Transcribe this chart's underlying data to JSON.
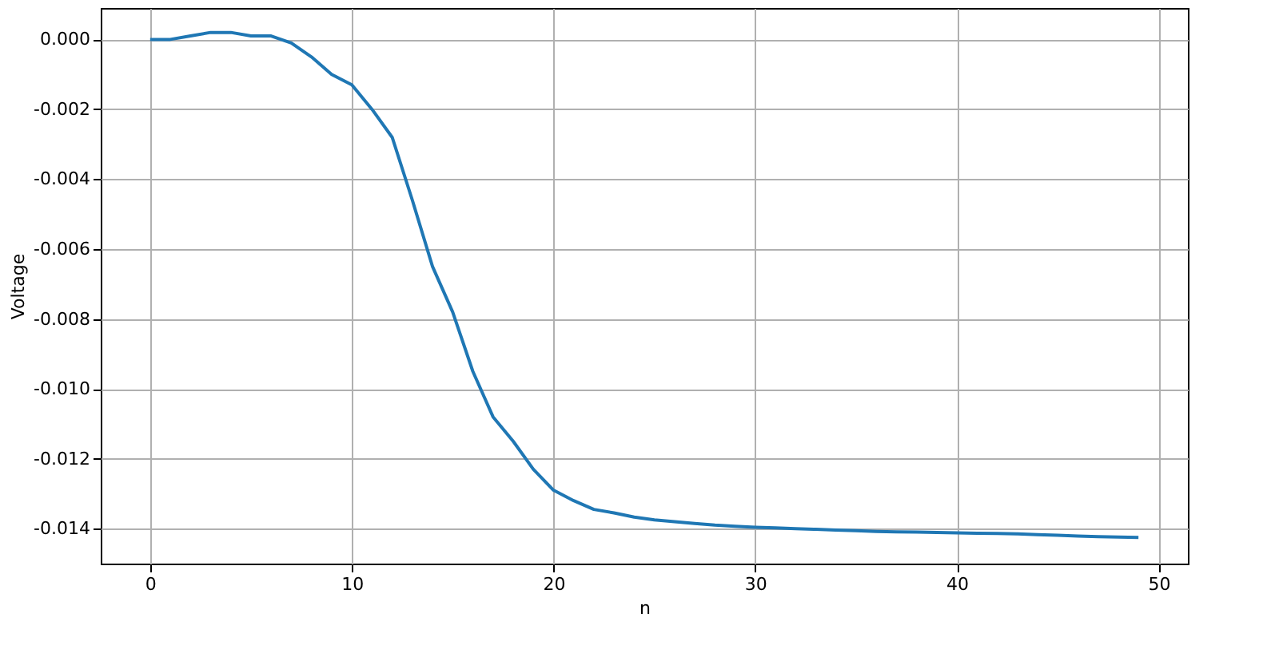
{
  "chart_data": {
    "type": "line",
    "xlabel": "n",
    "ylabel": "Voltage",
    "x": [
      0,
      1,
      2,
      3,
      4,
      5,
      6,
      7,
      8,
      9,
      10,
      11,
      12,
      13,
      14,
      15,
      16,
      17,
      18,
      19,
      20,
      21,
      22,
      23,
      24,
      25,
      26,
      27,
      28,
      29,
      30,
      31,
      32,
      33,
      34,
      35,
      36,
      37,
      38,
      39,
      40,
      41,
      42,
      43,
      44,
      45,
      46,
      47,
      48,
      49
    ],
    "series": [
      {
        "color": "#1f77b4",
        "values": [
          0.0,
          0.0,
          0.0001,
          0.0002,
          0.0002,
          0.0001,
          0.0001,
          -0.0001,
          -0.0005,
          -0.001,
          -0.0013,
          -0.002,
          -0.0028,
          -0.0046,
          -0.0065,
          -0.0078,
          -0.0095,
          -0.0108,
          -0.0115,
          -0.0123,
          -0.0129,
          -0.0132,
          -0.01345,
          -0.01355,
          -0.01367,
          -0.01375,
          -0.0138,
          -0.01385,
          -0.0139,
          -0.01393,
          -0.01396,
          -0.01398,
          -0.014,
          -0.01402,
          -0.01404,
          -0.01406,
          -0.01408,
          -0.01409,
          -0.0141,
          -0.01411,
          -0.01412,
          -0.01413,
          -0.01414,
          -0.01415,
          -0.01417,
          -0.01419,
          -0.01421,
          -0.01423,
          -0.01424,
          -0.01425
        ]
      }
    ],
    "xlim": [
      -2.45,
      51.45
    ],
    "ylim": [
      -0.015,
      0.0009
    ],
    "xticks": [
      0,
      10,
      20,
      30,
      40,
      50
    ],
    "yticks": [
      {
        "value": -0.014,
        "label": "-0.014"
      },
      {
        "value": -0.012,
        "label": "-0.012"
      },
      {
        "value": -0.01,
        "label": "-0.010"
      },
      {
        "value": -0.008,
        "label": "-0.008"
      },
      {
        "value": -0.006,
        "label": "-0.006"
      },
      {
        "value": -0.004,
        "label": "-0.004"
      },
      {
        "value": -0.002,
        "label": "-0.002"
      },
      {
        "value": 0,
        "label": "0.000"
      }
    ],
    "grid": true,
    "marker": "none",
    "line_style": "solid"
  }
}
